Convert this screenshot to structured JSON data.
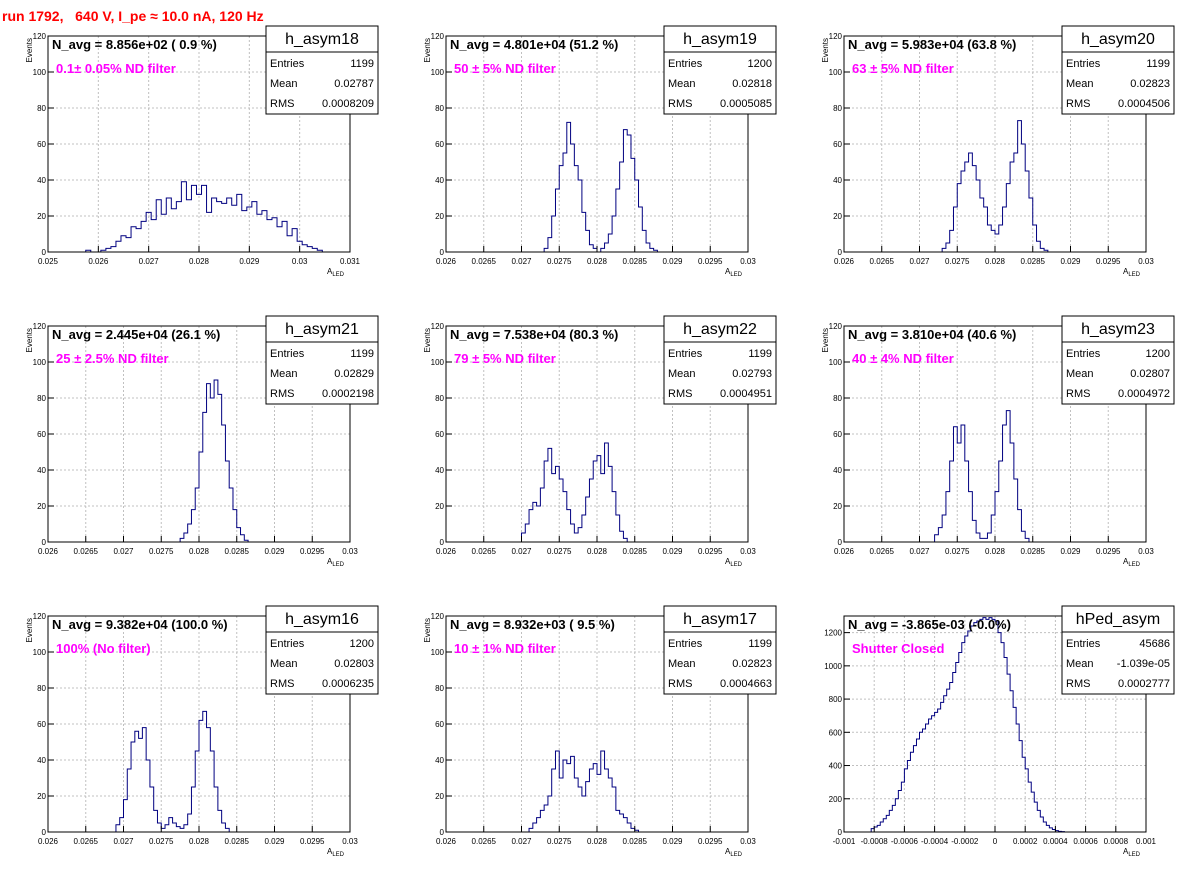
{
  "page_title": "run 1792,   640 V, I_pe ≈ 10.0 nA, 120 Hz",
  "colors": {
    "title": "#ff0000",
    "note": "#ff00ff",
    "line": "#000080",
    "grid": "#c0c0c0",
    "frame": "#000000"
  },
  "stats_labels": {
    "entries": "Entries",
    "mean": "Mean",
    "rms": "RMS"
  },
  "chart_data": [
    {
      "type": "histogram",
      "name": "h_asym18",
      "header": "N_avg = 8.856e+02 ( 0.9 %)",
      "note": "0.1± 0.05% ND filter",
      "xlabel": "A_LED",
      "ylabel": "Events",
      "xlim": [
        0.025,
        0.031
      ],
      "ylim": [
        0,
        120
      ],
      "xticks": [
        0.025,
        0.026,
        0.027,
        0.028,
        0.029,
        0.03,
        0.031
      ],
      "xticklabels": [
        "0.025",
        "0.026",
        "0.027",
        "0.028",
        "0.029",
        "0.03",
        "0.031"
      ],
      "yticks": [
        0,
        20,
        40,
        60,
        80,
        100,
        120
      ],
      "stats": {
        "entries": "1199",
        "mean": "0.02787",
        "rms": "0.0008209"
      },
      "bin_start": 0.02575,
      "bin_width": 0.0001,
      "counts": [
        1,
        0,
        0,
        1,
        2,
        3,
        6,
        9,
        8,
        14,
        13,
        17,
        22,
        18,
        29,
        21,
        30,
        24,
        28,
        39,
        29,
        37,
        32,
        37,
        22,
        30,
        28,
        27,
        30,
        26,
        32,
        23,
        25,
        28,
        21,
        23,
        18,
        19,
        14,
        17,
        9,
        13,
        6,
        4,
        3,
        2,
        1
      ]
    },
    {
      "type": "histogram",
      "name": "h_asym19",
      "header": "N_avg = 4.801e+04 (51.2 %)",
      "note": "50 ± 5% ND filter",
      "xlabel": "A_LED",
      "ylabel": "Events",
      "xlim": [
        0.026,
        0.03
      ],
      "ylim": [
        0,
        120
      ],
      "xticks": [
        0.026,
        0.0265,
        0.027,
        0.0275,
        0.028,
        0.0285,
        0.029,
        0.0295,
        0.03
      ],
      "xticklabels": [
        "0.026",
        "0.0265",
        "0.027",
        "0.0275",
        "0.028",
        "0.0285",
        "0.029",
        "0.0295",
        "0.03"
      ],
      "yticks": [
        0,
        20,
        40,
        60,
        80,
        100,
        120
      ],
      "stats": {
        "entries": "1200",
        "mean": "0.02818",
        "rms": "0.0005085"
      },
      "bin_start": 0.0273,
      "bin_width": 5e-05,
      "counts": [
        2,
        8,
        20,
        35,
        48,
        55,
        72,
        60,
        48,
        40,
        22,
        12,
        4,
        2,
        0,
        2,
        5,
        10,
        20,
        35,
        50,
        68,
        65,
        52,
        40,
        25,
        12,
        5,
        2,
        1
      ]
    },
    {
      "type": "histogram",
      "name": "h_asym20",
      "header": "N_avg = 5.983e+04 (63.8 %)",
      "note": "63 ± 5% ND filter",
      "xlabel": "A_LED",
      "ylabel": "Events",
      "xlim": [
        0.026,
        0.03
      ],
      "ylim": [
        0,
        120
      ],
      "xticks": [
        0.026,
        0.0265,
        0.027,
        0.0275,
        0.028,
        0.0285,
        0.029,
        0.0295,
        0.03
      ],
      "xticklabels": [
        "0.026",
        "0.0265",
        "0.027",
        "0.0275",
        "0.028",
        "0.0285",
        "0.029",
        "0.0295",
        "0.03"
      ],
      "yticks": [
        0,
        20,
        40,
        60,
        80,
        100,
        120
      ],
      "stats": {
        "entries": "1199",
        "mean": "0.02823",
        "rms": "0.0004506"
      },
      "bin_start": 0.0273,
      "bin_width": 5e-05,
      "counts": [
        2,
        5,
        12,
        25,
        38,
        45,
        50,
        55,
        48,
        40,
        30,
        25,
        15,
        12,
        10,
        15,
        25,
        38,
        50,
        55,
        73,
        60,
        45,
        30,
        15,
        6,
        2,
        1
      ]
    },
    {
      "type": "histogram",
      "name": "h_asym21",
      "header": "N_avg = 2.445e+04 (26.1 %)",
      "note": "25 ± 2.5% ND filter",
      "xlabel": "A_LED",
      "ylabel": "Events",
      "xlim": [
        0.026,
        0.03
      ],
      "ylim": [
        0,
        120
      ],
      "xticks": [
        0.026,
        0.0265,
        0.027,
        0.0275,
        0.028,
        0.0285,
        0.029,
        0.0295,
        0.03
      ],
      "xticklabels": [
        "0.026",
        "0.0265",
        "0.027",
        "0.0275",
        "0.028",
        "0.0285",
        "0.029",
        "0.0295",
        "0.03"
      ],
      "yticks": [
        0,
        20,
        40,
        60,
        80,
        100,
        120
      ],
      "stats": {
        "entries": "1199",
        "mean": "0.02829",
        "rms": "0.0002198"
      },
      "bin_start": 0.02775,
      "bin_width": 5e-05,
      "counts": [
        2,
        5,
        10,
        18,
        30,
        50,
        72,
        88,
        80,
        90,
        82,
        65,
        45,
        30,
        18,
        8,
        4,
        1
      ]
    },
    {
      "type": "histogram",
      "name": "h_asym22",
      "header": "N_avg = 7.538e+04 (80.3 %)",
      "note": "79 ± 5% ND filter",
      "xlabel": "A_LED",
      "ylabel": "Events",
      "xlim": [
        0.026,
        0.03
      ],
      "ylim": [
        0,
        120
      ],
      "xticks": [
        0.026,
        0.0265,
        0.027,
        0.0275,
        0.028,
        0.0285,
        0.029,
        0.0295,
        0.03
      ],
      "xticklabels": [
        "0.026",
        "0.0265",
        "0.027",
        "0.0275",
        "0.028",
        "0.0285",
        "0.029",
        "0.0295",
        "0.03"
      ],
      "yticks": [
        0,
        20,
        40,
        60,
        80,
        100,
        120
      ],
      "stats": {
        "entries": "1199",
        "mean": "0.02793",
        "rms": "0.0004951"
      },
      "bin_start": 0.027,
      "bin_width": 5e-05,
      "counts": [
        5,
        10,
        18,
        22,
        20,
        30,
        45,
        52,
        38,
        42,
        35,
        28,
        18,
        10,
        5,
        8,
        15,
        25,
        35,
        45,
        48,
        38,
        55,
        42,
        28,
        15,
        6,
        2
      ]
    },
    {
      "type": "histogram",
      "name": "h_asym23",
      "header": "N_avg = 3.810e+04 (40.6 %)",
      "note": "40 ± 4% ND filter",
      "xlabel": "A_LED",
      "ylabel": "Events",
      "xlim": [
        0.026,
        0.03
      ],
      "ylim": [
        0,
        120
      ],
      "xticks": [
        0.026,
        0.0265,
        0.027,
        0.0275,
        0.028,
        0.0285,
        0.029,
        0.0295,
        0.03
      ],
      "xticklabels": [
        "0.026",
        "0.0265",
        "0.027",
        "0.0275",
        "0.028",
        "0.0285",
        "0.029",
        "0.0295",
        "0.03"
      ],
      "yticks": [
        0,
        20,
        40,
        60,
        80,
        100,
        120
      ],
      "stats": {
        "entries": "1200",
        "mean": "0.02807",
        "rms": "0.0004972"
      },
      "bin_start": 0.0272,
      "bin_width": 5e-05,
      "counts": [
        4,
        8,
        15,
        28,
        45,
        64,
        55,
        65,
        45,
        28,
        12,
        5,
        2,
        2,
        5,
        15,
        28,
        45,
        65,
        73,
        55,
        35,
        18,
        6,
        2
      ]
    },
    {
      "type": "histogram",
      "name": "h_asym16",
      "header": "N_avg = 9.382e+04 (100.0 %)",
      "note": "100% (No filter)",
      "xlabel": "A_LED",
      "ylabel": "Events",
      "xlim": [
        0.026,
        0.03
      ],
      "ylim": [
        0,
        120
      ],
      "xticks": [
        0.026,
        0.0265,
        0.027,
        0.0275,
        0.028,
        0.0285,
        0.029,
        0.0295,
        0.03
      ],
      "xticklabels": [
        "0.026",
        "0.0265",
        "0.027",
        "0.0275",
        "0.028",
        "0.0285",
        "0.029",
        "0.0295",
        "0.03"
      ],
      "yticks": [
        0,
        20,
        40,
        60,
        80,
        100,
        120
      ],
      "stats": {
        "entries": "1200",
        "mean": "0.02803",
        "rms": "0.0006235"
      },
      "bin_start": 0.0269,
      "bin_width": 5e-05,
      "counts": [
        4,
        8,
        18,
        35,
        50,
        56,
        52,
        58,
        40,
        25,
        12,
        5,
        2,
        4,
        8,
        5,
        3,
        2,
        4,
        10,
        25,
        45,
        62,
        67,
        58,
        45,
        25,
        12,
        5,
        2
      ]
    },
    {
      "type": "histogram",
      "name": "h_asym17",
      "header": "N_avg = 8.932e+03 ( 9.5 %)",
      "note": "10 ± 1% ND filter",
      "xlabel": "A_LED",
      "ylabel": "Events",
      "xlim": [
        0.026,
        0.03
      ],
      "ylim": [
        0,
        120
      ],
      "xticks": [
        0.026,
        0.0265,
        0.027,
        0.0275,
        0.028,
        0.0285,
        0.029,
        0.0295,
        0.03
      ],
      "xticklabels": [
        "0.026",
        "0.0265",
        "0.027",
        "0.0275",
        "0.028",
        "0.0285",
        "0.029",
        "0.0295",
        "0.03"
      ],
      "yticks": [
        0,
        20,
        40,
        60,
        80,
        100,
        120
      ],
      "stats": {
        "entries": "1199",
        "mean": "0.02823",
        "rms": "0.0004663"
      },
      "bin_start": 0.0271,
      "bin_width": 5e-05,
      "counts": [
        2,
        5,
        8,
        12,
        15,
        20,
        35,
        45,
        30,
        40,
        38,
        42,
        30,
        25,
        20,
        28,
        35,
        38,
        32,
        45,
        35,
        30,
        25,
        12,
        10,
        8,
        5,
        2,
        1
      ]
    },
    {
      "type": "histogram",
      "name": "hPed_asym",
      "header": "N_avg = -3.865e-03 (-0.0%)",
      "note": "Shutter Closed",
      "xlabel": "A_LED",
      "ylabel": "",
      "xlim": [
        -0.001,
        0.001
      ],
      "ylim": [
        0,
        1300
      ],
      "xticks": [
        -0.001,
        -0.0008,
        -0.0006,
        -0.0004,
        -0.0002,
        0,
        0.0002,
        0.0004,
        0.0006,
        0.0008,
        0.001
      ],
      "xticklabels": [
        "-0.001",
        "-0.0008",
        "-0.0006",
        "-0.0004",
        "-0.0002",
        "0",
        "0.0002",
        "0.0004",
        "0.0006",
        "0.0008",
        "0.001"
      ],
      "yticks": [
        0,
        200,
        400,
        600,
        800,
        1000,
        1200
      ],
      "stats": {
        "entries": "45686",
        "mean": "-1.039e-05",
        "rms": "0.0002777"
      },
      "bin_start": -0.00082,
      "bin_width": 2e-05,
      "counts": [
        20,
        30,
        40,
        60,
        80,
        100,
        130,
        160,
        200,
        250,
        300,
        380,
        430,
        480,
        520,
        560,
        600,
        620,
        650,
        680,
        700,
        720,
        740,
        780,
        820,
        860,
        900,
        960,
        1020,
        1080,
        1140,
        1180,
        1210,
        1240,
        1260,
        1270,
        1280,
        1290,
        1280,
        1290,
        1280,
        1270,
        1200,
        1140,
        1050,
        950,
        850,
        750,
        650,
        550,
        450,
        380,
        300,
        240,
        180,
        130,
        90,
        60,
        40,
        25,
        15,
        8,
        4,
        2
      ]
    }
  ]
}
